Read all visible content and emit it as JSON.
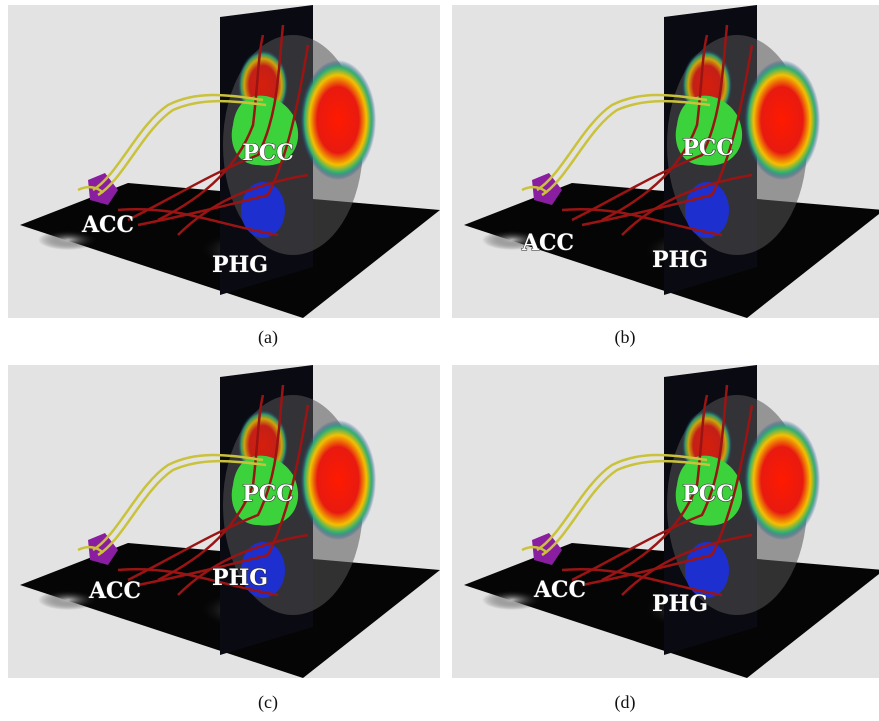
{
  "panels": [
    {
      "caption": "(a)",
      "labels": [
        "ACC",
        "PCC",
        "PHG"
      ]
    },
    {
      "caption": "(b)",
      "labels": [
        "ACC",
        "PCC",
        "PHG"
      ]
    },
    {
      "caption": "(c)",
      "labels": [
        "ACC",
        "PCC",
        "PHG"
      ]
    },
    {
      "caption": "(d)",
      "labels": [
        "ACC",
        "PCC",
        "PHG"
      ]
    }
  ]
}
